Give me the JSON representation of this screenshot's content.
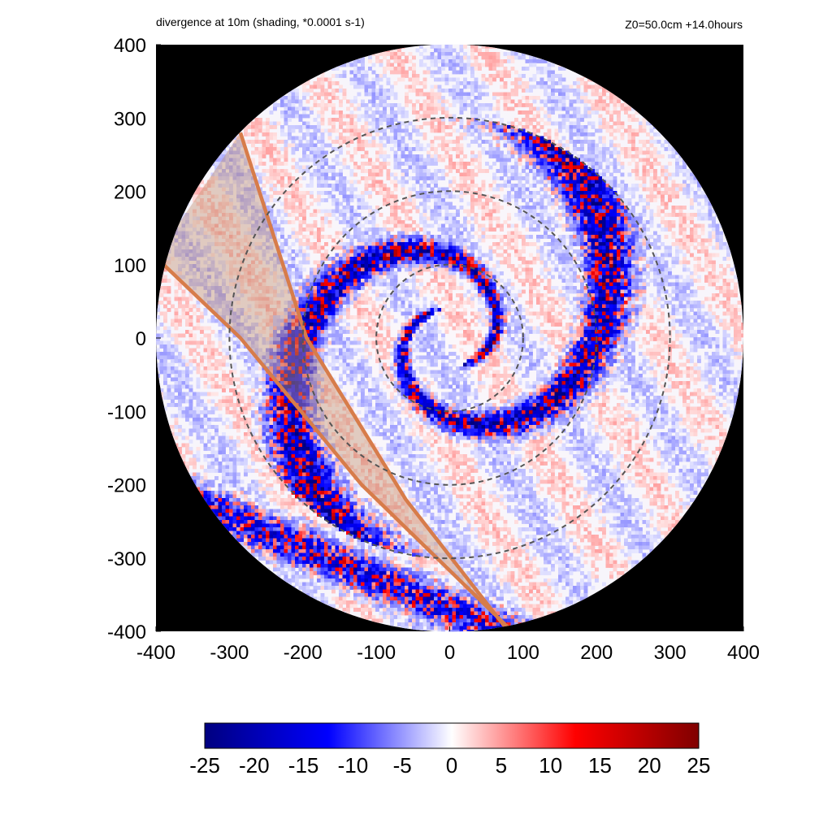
{
  "header": {
    "title": "divergence at 10m (shading, *0.0001 s-1)",
    "run_info": "Z0=50.0cm  +14.0hours"
  },
  "chart_data": {
    "type": "heatmap",
    "title": "divergence at 10m (shading, *0.0001 s-1)",
    "annotation": "Z0=50.0cm  +14.0hours",
    "xlim": [
      -400,
      400
    ],
    "ylim": [
      -400,
      400
    ],
    "x_ticks": [
      -400,
      -300,
      -200,
      -100,
      0,
      100,
      200,
      300,
      400
    ],
    "y_ticks": [
      -400,
      -300,
      -200,
      -100,
      0,
      100,
      200,
      300,
      400
    ],
    "domain_radius": 400,
    "dashed_circles_radius": [
      100,
      200,
      300
    ],
    "colorbar": {
      "range": [
        -25,
        25
      ],
      "ticks": [
        -25,
        -20,
        -15,
        -10,
        -5,
        0,
        5,
        10,
        15,
        20,
        25
      ],
      "colors": [
        "#000080",
        "#0000ff",
        "#ffffff",
        "#ff0000",
        "#800000"
      ]
    },
    "overlay_band": {
      "edge1": [
        [
          -285,
          280
        ],
        [
          -195,
          0
        ],
        [
          -60,
          -220
        ],
        [
          80,
          -400
        ]
      ],
      "edge2": [
        [
          -400,
          110
        ],
        [
          -285,
          0
        ],
        [
          -120,
          -200
        ],
        [
          85,
          -400
        ]
      ]
    },
    "grid": false
  }
}
